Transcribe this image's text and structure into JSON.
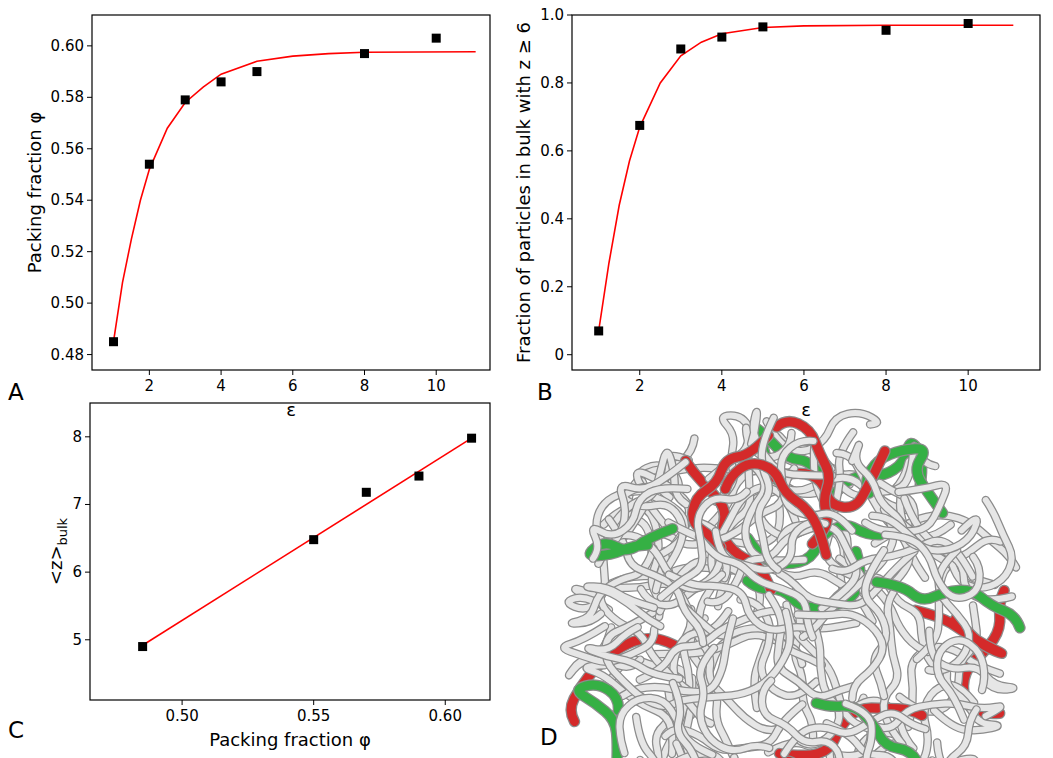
{
  "chart_data": [
    {
      "type": "scatter",
      "panel": "A",
      "xlabel": "ε",
      "ylabel": "Packing fraction φ",
      "xlim": [
        0.4,
        11.5
      ],
      "xticks": [
        2,
        4,
        6,
        8,
        10
      ],
      "ylim": [
        0.474,
        0.612
      ],
      "yticks": [
        0.48,
        {
          "value": 0.5,
          "label": "0.50"
        },
        0.52,
        0.54,
        0.56,
        0.58,
        {
          "value": 0.6,
          "label": "0.60"
        }
      ],
      "series": [
        {
          "type": "scatter",
          "marker": "square",
          "color": "#000000",
          "x": [
            1,
            2,
            3,
            4,
            5,
            8,
            10
          ],
          "values": [
            0.485,
            0.554,
            0.579,
            0.586,
            0.59,
            0.597,
            0.603
          ]
        },
        {
          "type": "line",
          "line_style": "solid",
          "color": "#ff0000",
          "x": [
            1,
            1.25,
            1.5,
            1.75,
            2,
            2.5,
            3,
            3.5,
            4,
            5,
            6,
            7,
            8,
            11.1
          ],
          "values": [
            0.485,
            0.508,
            0.525,
            0.54,
            0.552,
            0.568,
            0.578,
            0.584,
            0.589,
            0.594,
            0.596,
            0.597,
            0.5975,
            0.5977
          ]
        }
      ]
    },
    {
      "type": "scatter",
      "panel": "B",
      "xlabel": "ε",
      "ylabel": "Fraction of particles in bulk with z ≥ 6",
      "xlim": [
        0.35,
        11.75
      ],
      "xticks": [
        2,
        4,
        6,
        8,
        10
      ],
      "ylim": [
        -0.045,
        1.0
      ],
      "yticks": [
        0,
        0.2,
        0.4,
        0.6,
        0.8,
        {
          "value": 1.0,
          "label": "1.0"
        }
      ],
      "series": [
        {
          "type": "scatter",
          "marker": "square",
          "color": "#000000",
          "x": [
            1,
            2,
            3,
            4,
            5,
            8,
            10
          ],
          "values": [
            0.07,
            0.675,
            0.9,
            0.935,
            0.965,
            0.955,
            0.975
          ]
        },
        {
          "type": "line",
          "line_style": "solid",
          "color": "#ff0000",
          "x": [
            1,
            1.25,
            1.5,
            1.75,
            2,
            2.5,
            3,
            3.5,
            4,
            5,
            6,
            8,
            11.1
          ],
          "values": [
            0.07,
            0.27,
            0.44,
            0.57,
            0.67,
            0.8,
            0.88,
            0.92,
            0.945,
            0.963,
            0.968,
            0.97,
            0.97
          ]
        }
      ]
    },
    {
      "type": "scatter",
      "panel": "C",
      "xlabel": "Packing fraction φ",
      "ylabel": "<z>",
      "ylabel_subscript": "bulk",
      "xlim": [
        0.465,
        0.617
      ],
      "xticks": [
        {
          "value": 0.5,
          "label": "0.50"
        },
        0.55,
        {
          "value": 0.6,
          "label": "0.60"
        }
      ],
      "ylim": [
        4.11,
        8.5
      ],
      "yticks": [
        5,
        6,
        7,
        8
      ],
      "series": [
        {
          "type": "scatter",
          "marker": "square",
          "color": "#000000",
          "x": [
            0.485,
            0.55,
            0.57,
            0.59,
            0.61
          ],
          "values": [
            4.9,
            6.48,
            7.18,
            7.42,
            7.98
          ]
        },
        {
          "type": "line",
          "line_style": "solid",
          "color": "#ff0000",
          "x": [
            0.485,
            0.61
          ],
          "values": [
            4.92,
            7.98
          ]
        }
      ]
    }
  ],
  "rendering": {
    "panel": "D"
  }
}
